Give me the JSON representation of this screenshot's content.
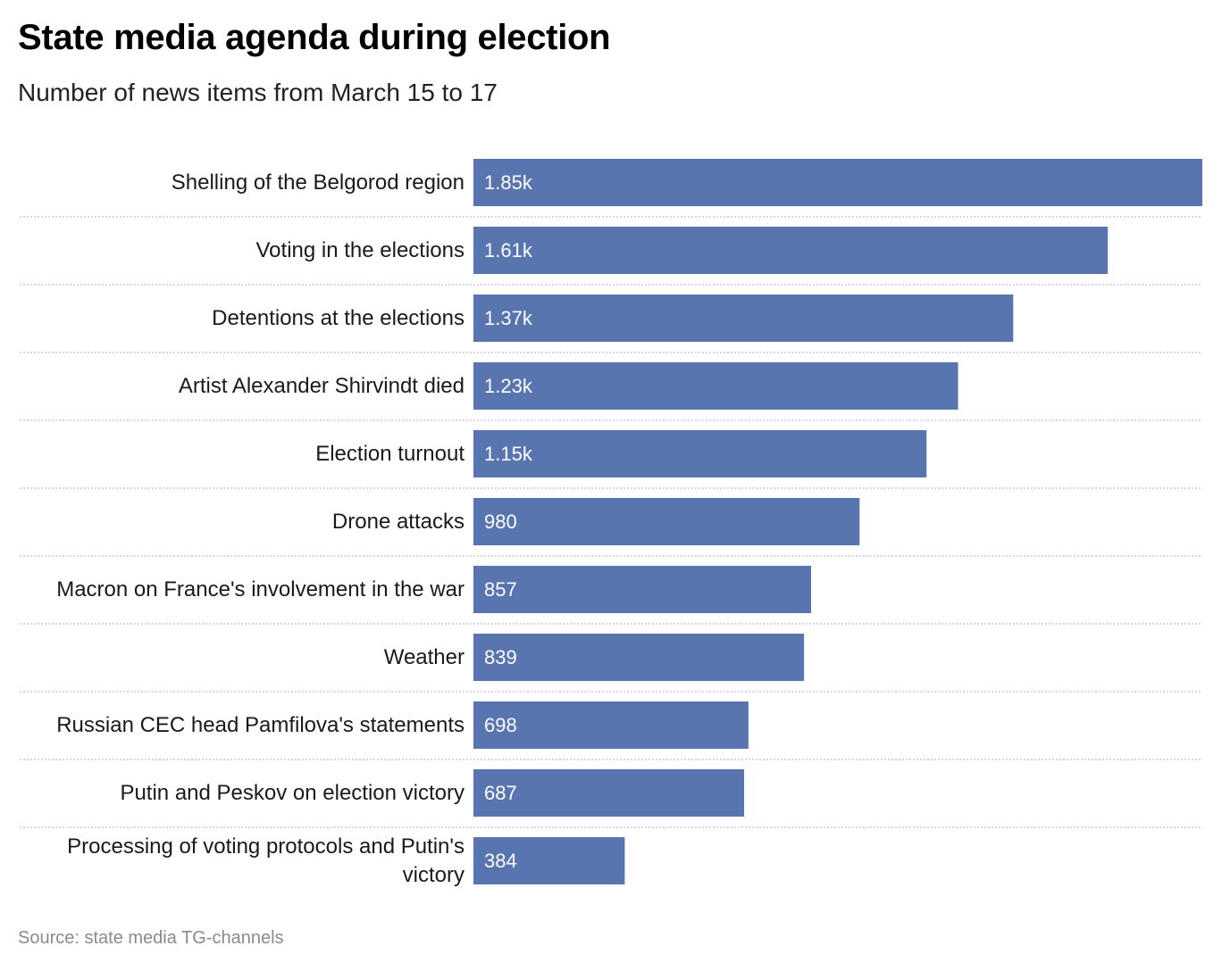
{
  "title": "State media agenda during election",
  "subtitle": "Number of news items from March 15 to 17",
  "source": "Source: state media TG-channels",
  "colors": {
    "bar": "#5975b0",
    "divider": "#cccccc"
  },
  "chart_data": {
    "type": "bar",
    "orientation": "horizontal",
    "title": "State media agenda during election",
    "subtitle": "Number of news items from March 15 to 17",
    "xlabel": "",
    "ylabel": "",
    "grid": false,
    "legend": "none",
    "xlim": [
      0,
      1850
    ],
    "categories": [
      "Shelling of the Belgorod region",
      "Voting in the elections",
      "Detentions at the elections",
      "Artist Alexander Shirvindt died",
      "Election turnout",
      "Drone attacks",
      "Macron on France's involvement in the war",
      "Weather",
      "Russian CEC head Pamfilova's statements",
      "Putin and Peskov on election victory",
      "Processing of voting protocols and Putin's victory"
    ],
    "values": [
      1850,
      1610,
      1370,
      1230,
      1150,
      980,
      857,
      839,
      698,
      687,
      384
    ],
    "value_labels": [
      "1.85k",
      "1.61k",
      "1.37k",
      "1.23k",
      "1.15k",
      "980",
      "857",
      "839",
      "698",
      "687",
      "384"
    ]
  }
}
